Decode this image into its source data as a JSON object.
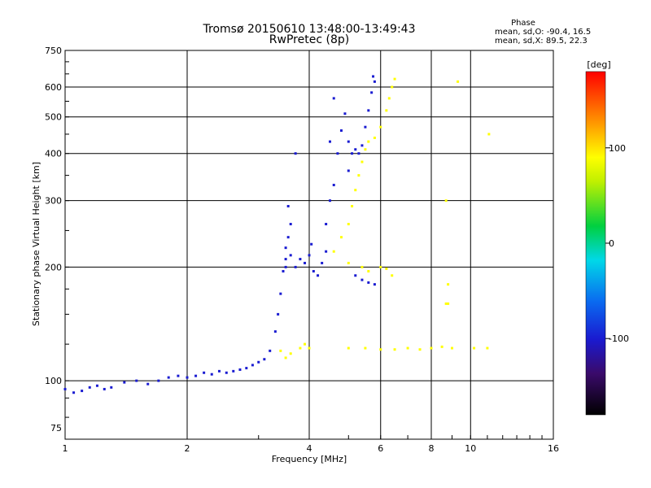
{
  "chart_data": {
    "type": "scatter",
    "title": "Tromsø 20150610 13:48:00-13:49:43",
    "subtitle": "RwPretec (8p)",
    "xlabel": "Frequency [MHz]",
    "ylabel": "Stationary phase Virtual Height [km]",
    "x_scale": "log",
    "y_scale": "log",
    "xlim": [
      1,
      16
    ],
    "ylim": [
      70,
      750
    ],
    "x_ticks": [
      "1",
      "2",
      "4",
      "6",
      "8",
      "10",
      "16"
    ],
    "x_tick_values": [
      1,
      2,
      4,
      6,
      8,
      10,
      16
    ],
    "y_ticks": [
      "75",
      "100",
      "200",
      "300",
      "400",
      "500",
      "600",
      "750"
    ],
    "y_tick_values": [
      75,
      100,
      200,
      300,
      400,
      500,
      600,
      750
    ],
    "grid": true,
    "phase_panel": {
      "heading": "Phase",
      "line_o": "mean, sd,O: -90.4, 16.5",
      "line_x": "mean, sd,X:  89.5, 22.3"
    },
    "colorbar": {
      "label": "[deg]",
      "range": [
        -180,
        180
      ],
      "ticks": [
        "100",
        "0",
        "-100"
      ],
      "tick_values": [
        100,
        0,
        -100
      ]
    },
    "colors": {
      "o_mode": "#1a3cf0",
      "x_mode": "#e6e600"
    },
    "series": [
      {
        "mode": "O",
        "phase": -100,
        "points": [
          [
            1.0,
            95
          ],
          [
            1.05,
            93
          ],
          [
            1.1,
            94
          ],
          [
            1.15,
            96
          ],
          [
            1.2,
            97
          ],
          [
            1.25,
            95
          ],
          [
            1.3,
            96
          ],
          [
            1.4,
            99
          ],
          [
            1.5,
            100
          ],
          [
            1.6,
            98
          ],
          [
            1.7,
            100
          ],
          [
            1.8,
            102
          ],
          [
            1.9,
            103
          ],
          [
            2.0,
            102
          ],
          [
            2.1,
            103
          ],
          [
            2.2,
            105
          ],
          [
            2.3,
            104
          ],
          [
            2.4,
            106
          ],
          [
            2.5,
            105
          ],
          [
            2.6,
            106
          ],
          [
            2.7,
            107
          ],
          [
            2.8,
            108
          ],
          [
            2.9,
            110
          ],
          [
            3.0,
            112
          ],
          [
            3.1,
            114
          ],
          [
            3.2,
            120
          ],
          [
            3.3,
            135
          ],
          [
            3.35,
            150
          ],
          [
            3.4,
            170
          ],
          [
            3.45,
            195
          ],
          [
            3.5,
            200
          ],
          [
            3.5,
            210
          ],
          [
            3.5,
            225
          ],
          [
            3.55,
            240
          ],
          [
            3.6,
            260
          ],
          [
            3.55,
            290
          ],
          [
            3.6,
            215
          ],
          [
            3.7,
            200
          ],
          [
            3.8,
            210
          ],
          [
            3.9,
            205
          ],
          [
            4.0,
            215
          ],
          [
            4.05,
            230
          ],
          [
            4.1,
            195
          ],
          [
            4.2,
            190
          ],
          [
            4.3,
            205
          ],
          [
            4.4,
            220
          ],
          [
            4.4,
            260
          ],
          [
            4.5,
            300
          ],
          [
            4.6,
            330
          ],
          [
            4.7,
            400
          ],
          [
            4.8,
            460
          ],
          [
            4.9,
            510
          ],
          [
            5.0,
            430
          ],
          [
            5.0,
            360
          ],
          [
            5.1,
            400
          ],
          [
            5.2,
            410
          ],
          [
            5.3,
            400
          ],
          [
            5.4,
            420
          ],
          [
            5.5,
            470
          ],
          [
            5.6,
            520
          ],
          [
            5.7,
            580
          ],
          [
            5.75,
            640
          ],
          [
            5.8,
            620
          ],
          [
            5.2,
            190
          ],
          [
            5.4,
            185
          ],
          [
            5.6,
            182
          ],
          [
            5.8,
            180
          ],
          [
            4.6,
            560
          ],
          [
            4.5,
            430
          ],
          [
            3.7,
            400
          ]
        ]
      },
      {
        "mode": "X",
        "phase": 90,
        "points": [
          [
            3.4,
            120
          ],
          [
            3.5,
            115
          ],
          [
            3.6,
            118
          ],
          [
            3.8,
            122
          ],
          [
            3.9,
            125
          ],
          [
            4.0,
            122
          ],
          [
            4.6,
            220
          ],
          [
            4.8,
            240
          ],
          [
            5.0,
            260
          ],
          [
            5.1,
            290
          ],
          [
            5.2,
            320
          ],
          [
            5.3,
            350
          ],
          [
            5.4,
            380
          ],
          [
            5.5,
            410
          ],
          [
            5.6,
            430
          ],
          [
            5.8,
            440
          ],
          [
            6.0,
            470
          ],
          [
            6.2,
            520
          ],
          [
            6.3,
            560
          ],
          [
            6.4,
            600
          ],
          [
            6.5,
            630
          ],
          [
            5.0,
            205
          ],
          [
            5.4,
            200
          ],
          [
            5.6,
            195
          ],
          [
            6.0,
            200
          ],
          [
            6.2,
            198
          ],
          [
            6.4,
            190
          ],
          [
            8.8,
            180
          ],
          [
            5.0,
            122
          ],
          [
            5.5,
            122
          ],
          [
            6.0,
            121
          ],
          [
            6.5,
            121
          ],
          [
            7.0,
            122
          ],
          [
            7.5,
            121
          ],
          [
            8.0,
            122
          ],
          [
            8.5,
            123
          ],
          [
            9.0,
            122
          ],
          [
            10.2,
            122
          ],
          [
            11.0,
            122
          ],
          [
            8.8,
            160
          ],
          [
            8.7,
            300
          ],
          [
            9.3,
            620
          ],
          [
            8.7,
            160
          ],
          [
            11.1,
            450
          ]
        ]
      }
    ]
  }
}
